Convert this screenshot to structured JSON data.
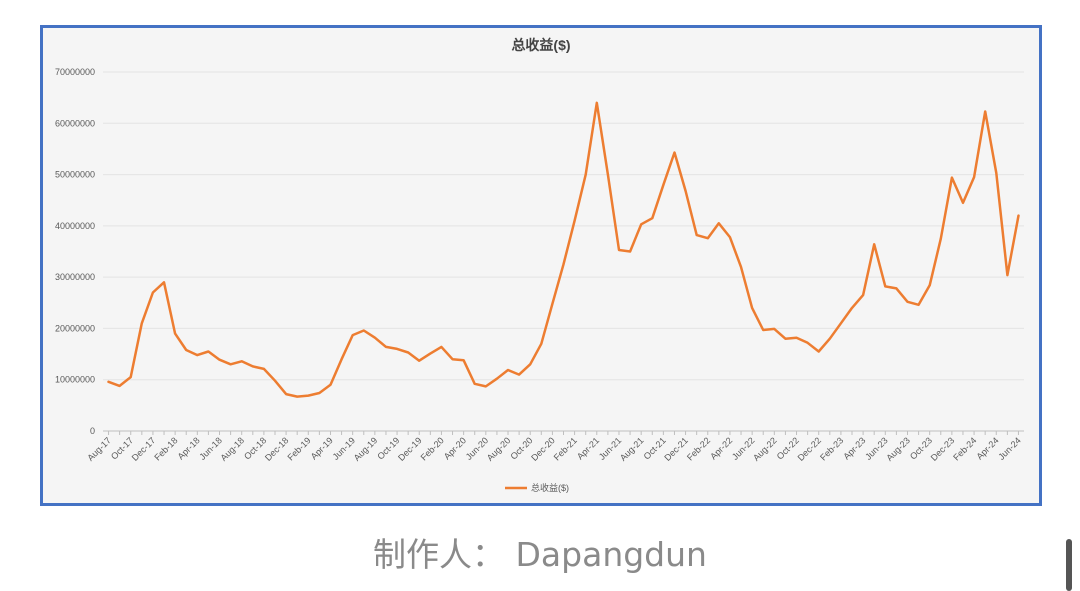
{
  "chart_data": {
    "type": "line",
    "title": "总收益($)",
    "xlabel": "",
    "ylabel": "",
    "ylim": [
      0,
      70000000
    ],
    "y_ticks": [
      "0",
      "10000000",
      "20000000",
      "30000000",
      "40000000",
      "50000000",
      "60000000",
      "70000000"
    ],
    "grid": true,
    "legend_position": "bottom",
    "x_tick_labels": [
      "Aug-17",
      "Oct-17",
      "Dec-17",
      "Feb-18",
      "Apr-18",
      "Jun-18",
      "Aug-18",
      "Oct-18",
      "Dec-18",
      "Feb-19",
      "Apr-19",
      "Jun-19",
      "Aug-19",
      "Oct-19",
      "Dec-19",
      "Feb-20",
      "Apr-20",
      "Jun-20",
      "Aug-20",
      "Oct-20",
      "Dec-20",
      "Feb-21",
      "Apr-21",
      "Jun-21",
      "Aug-21",
      "Oct-21",
      "Dec-21",
      "Feb-22",
      "Apr-22",
      "Jun-22",
      "Aug-22",
      "Oct-22",
      "Dec-22",
      "Feb-23",
      "Apr-23",
      "Jun-23",
      "Aug-23",
      "Oct-23",
      "Dec-23",
      "Feb-24",
      "Apr-24",
      "Jun-24"
    ],
    "x": [
      "Aug-17",
      "Sep-17",
      "Oct-17",
      "Nov-17",
      "Dec-17",
      "Jan-18",
      "Feb-18",
      "Mar-18",
      "Apr-18",
      "May-18",
      "Jun-18",
      "Jul-18",
      "Aug-18",
      "Sep-18",
      "Oct-18",
      "Nov-18",
      "Dec-18",
      "Jan-19",
      "Feb-19",
      "Mar-19",
      "Apr-19",
      "May-19",
      "Jun-19",
      "Jul-19",
      "Aug-19",
      "Sep-19",
      "Oct-19",
      "Nov-19",
      "Dec-19",
      "Jan-20",
      "Feb-20",
      "Mar-20",
      "Apr-20",
      "May-20",
      "Jun-20",
      "Jul-20",
      "Aug-20",
      "Sep-20",
      "Oct-20",
      "Nov-20",
      "Dec-20",
      "Jan-21",
      "Feb-21",
      "Mar-21",
      "Apr-21",
      "May-21",
      "Jun-21",
      "Jul-21",
      "Aug-21",
      "Sep-21",
      "Oct-21",
      "Nov-21",
      "Dec-21",
      "Jan-22",
      "Feb-22",
      "Mar-22",
      "Apr-22",
      "May-22",
      "Jun-22",
      "Jul-22",
      "Aug-22",
      "Sep-22",
      "Oct-22",
      "Nov-22",
      "Dec-22",
      "Jan-23",
      "Feb-23",
      "Mar-23",
      "Apr-23",
      "May-23",
      "Jun-23",
      "Jul-23",
      "Aug-23",
      "Sep-23",
      "Oct-23",
      "Nov-23",
      "Dec-23",
      "Jan-24",
      "Feb-24",
      "Mar-24",
      "Apr-24",
      "May-24",
      "Jun-24"
    ],
    "series": [
      {
        "name": "总收益($)",
        "color": "#ed7d31",
        "values": [
          9600000,
          8800000,
          10500000,
          21000000,
          27000000,
          29000000,
          19000000,
          15800000,
          14800000,
          15500000,
          13900000,
          13000000,
          13600000,
          12600000,
          12100000,
          9800000,
          7200000,
          6700000,
          6900000,
          7400000,
          9000000,
          14000000,
          18700000,
          19600000,
          18200000,
          16400000,
          16000000,
          15300000,
          13700000,
          15100000,
          16400000,
          14000000,
          13800000,
          9200000,
          8700000,
          10200000,
          11900000,
          11000000,
          13000000,
          17000000,
          24800000,
          32500000,
          41000000,
          50000000,
          64000000,
          50000000,
          35300000,
          35000000,
          40300000,
          41500000,
          48000000,
          54300000,
          46800000,
          38200000,
          37600000,
          40500000,
          37800000,
          32000000,
          24000000,
          19700000,
          19900000,
          18000000,
          18200000,
          17200000,
          15500000,
          18000000,
          21000000,
          24000000,
          26500000,
          36400000,
          28200000,
          27800000,
          25200000,
          24600000,
          28400000,
          37500000,
          49400000,
          44500000,
          49500000,
          62300000,
          50300000,
          30400000,
          42000000
        ]
      }
    ]
  },
  "footer": {
    "credit": "制作人： Dapangdun"
  }
}
